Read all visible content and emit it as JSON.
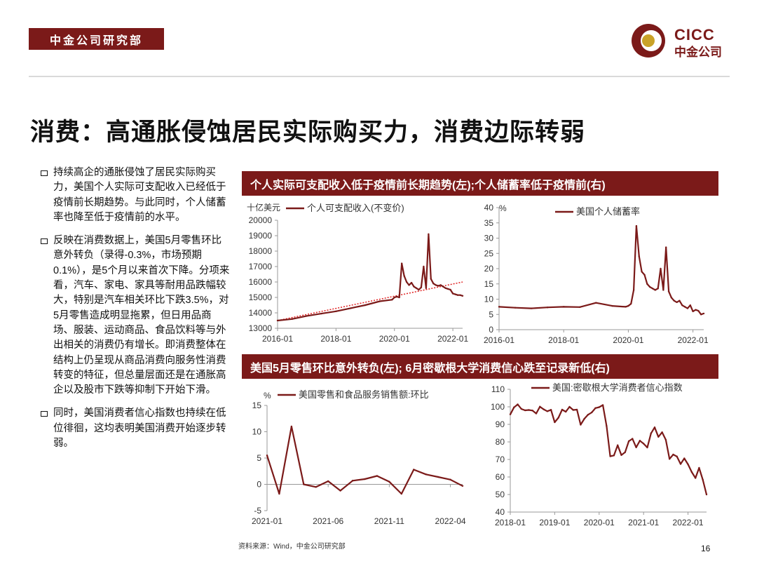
{
  "header": {
    "tag": "中金公司研究部",
    "logo_text": "CICC",
    "logo_cn": "中金公司"
  },
  "title": "消费：高通胀侵蚀居民实际购买力，消费边际转弱",
  "bullets": [
    "持续高企的通胀侵蚀了居民实际购买力，美国个人实际可支配收入已经低于疫情前长期趋势。与此同时，个人储蓄率也降至低于疫情前的水平。",
    "反映在消费数据上，美国5月零售环比意外转负（录得-0.3%，市场预期0.1%），是5个月以来首次下降。分项来看，汽车、家电、家具等耐用品跌幅较大，特别是汽车相关环比下跌3.5%，对5月零售造成明显拖累，但日用品商场、服装、运动商品、食品饮料等与外出相关的消费仍有增长。即消费整体在结构上仍呈现从商品消费向服务性消费转变的特征，但总量层面还是在通胀高企以及股市下跌等抑制下开始下滑。",
    "同时，美国消费者信心指数也持续在低位徘徊，这均表明美国消费开始逐步转弱。"
  ],
  "panel_top_title": "个人实际可支配收入低于疫情前长期趋势(左);个人储蓄率低于疫情前(右)",
  "panel_bottom_title": "美国5月零售环比意外转负(左); 6月密歇根大学消费信心跌至记录新低(右)",
  "source": "资料来源：Wind，中金公司研究部",
  "page_number": "16",
  "colors": {
    "brand": "#7b1a19",
    "series": "#7b1a19",
    "trend": "#e02020",
    "axis": "#888888"
  },
  "chart_data": [
    {
      "type": "line",
      "unit_label": "十亿美元",
      "legend": "个人可支配收入(不变价)",
      "ylim": [
        13000,
        20000
      ],
      "yticks": [
        13000,
        14000,
        15000,
        16000,
        17000,
        18000,
        19000,
        20000
      ],
      "xticks": [
        "2016-01",
        "2018-01",
        "2020-01",
        "2022-01"
      ],
      "x": [
        "2016-01",
        "2016-07",
        "2017-01",
        "2017-07",
        "2018-01",
        "2018-07",
        "2019-01",
        "2019-07",
        "2019-12",
        "2020-01",
        "2020-02",
        "2020-03",
        "2020-04",
        "2020-05",
        "2020-06",
        "2020-07",
        "2020-08",
        "2020-09",
        "2020-10",
        "2020-11",
        "2020-12",
        "2021-01",
        "2021-02",
        "2021-03",
        "2021-04",
        "2021-05",
        "2021-06",
        "2021-07",
        "2021-08",
        "2021-09",
        "2021-10",
        "2021-11",
        "2021-12",
        "2022-01",
        "2022-02",
        "2022-03",
        "2022-04",
        "2022-05"
      ],
      "values": [
        13500,
        13600,
        13800,
        13950,
        14100,
        14300,
        14500,
        14750,
        14850,
        15000,
        15050,
        15000,
        17200,
        16400,
        16000,
        15800,
        15950,
        15700,
        15600,
        15500,
        15650,
        17000,
        15600,
        19100,
        16200,
        15900,
        15800,
        15750,
        15800,
        15700,
        15600,
        15550,
        15500,
        15250,
        15200,
        15150,
        15150,
        15100
      ],
      "trend_line": {
        "label": "疫情前长期趋势",
        "start": [
          "2016-01",
          13500
        ],
        "end": [
          "2022-05",
          16000
        ]
      }
    },
    {
      "type": "line",
      "unit_label": "%",
      "legend": "美国个人储蓄率",
      "ylim": [
        0,
        40
      ],
      "yticks": [
        0,
        5,
        10,
        15,
        20,
        25,
        30,
        35,
        40
      ],
      "xticks": [
        "2016-01",
        "2018-01",
        "2020-01",
        "2022-01"
      ],
      "x": [
        "2016-01",
        "2016-07",
        "2017-01",
        "2017-07",
        "2018-01",
        "2018-07",
        "2019-01",
        "2019-07",
        "2019-12",
        "2020-01",
        "2020-02",
        "2020-03",
        "2020-04",
        "2020-05",
        "2020-06",
        "2020-07",
        "2020-08",
        "2020-09",
        "2020-10",
        "2020-11",
        "2020-12",
        "2021-01",
        "2021-02",
        "2021-03",
        "2021-04",
        "2021-05",
        "2021-06",
        "2021-07",
        "2021-08",
        "2021-09",
        "2021-10",
        "2021-11",
        "2021-12",
        "2022-01",
        "2022-02",
        "2022-03",
        "2022-04",
        "2022-05"
      ],
      "values": [
        7.5,
        7.2,
        7.0,
        7.3,
        7.5,
        7.4,
        8.8,
        7.8,
        7.5,
        7.8,
        8.5,
        13.0,
        34.0,
        24.0,
        19.0,
        18.0,
        15.0,
        14.0,
        13.5,
        13.0,
        13.5,
        20.0,
        13.0,
        27.0,
        12.5,
        10.5,
        9.5,
        9.0,
        9.5,
        8.0,
        7.5,
        7.0,
        8.0,
        6.0,
        6.5,
        6.2,
        5.0,
        5.3
      ]
    },
    {
      "type": "line",
      "unit_label": "%",
      "legend": "美国零售和食品服务销售额:环比",
      "ylim": [
        -5,
        15
      ],
      "yticks": [
        -5,
        0,
        5,
        10,
        15
      ],
      "xticks": [
        "2021-01",
        "2021-06",
        "2021-11",
        "2022-04"
      ],
      "x": [
        "2021-01",
        "2021-02",
        "2021-03",
        "2021-04",
        "2021-05",
        "2021-06",
        "2021-07",
        "2021-08",
        "2021-09",
        "2021-10",
        "2021-11",
        "2021-12",
        "2022-01",
        "2022-02",
        "2022-03",
        "2022-04",
        "2022-05"
      ],
      "values": [
        5.5,
        -1.8,
        11.0,
        0.0,
        -0.5,
        0.6,
        -1.2,
        0.7,
        1.0,
        1.6,
        0.5,
        -1.8,
        2.8,
        1.9,
        1.4,
        0.9,
        -0.3
      ]
    },
    {
      "type": "line",
      "legend": "美国:密歇根大学消费者信心指数",
      "ylim": [
        40,
        110
      ],
      "yticks": [
        40,
        50,
        60,
        70,
        80,
        90,
        100,
        110
      ],
      "xticks": [
        "2018-01",
        "2019-01",
        "2020-01",
        "2021-01",
        "2022-01"
      ],
      "x": [
        "2018-01",
        "2018-02",
        "2018-03",
        "2018-04",
        "2018-05",
        "2018-06",
        "2018-07",
        "2018-08",
        "2018-09",
        "2018-10",
        "2018-11",
        "2018-12",
        "2019-01",
        "2019-02",
        "2019-03",
        "2019-04",
        "2019-05",
        "2019-06",
        "2019-07",
        "2019-08",
        "2019-09",
        "2019-10",
        "2019-11",
        "2019-12",
        "2020-01",
        "2020-02",
        "2020-03",
        "2020-04",
        "2020-05",
        "2020-06",
        "2020-07",
        "2020-08",
        "2020-09",
        "2020-10",
        "2020-11",
        "2020-12",
        "2021-01",
        "2021-02",
        "2021-03",
        "2021-04",
        "2021-05",
        "2021-06",
        "2021-07",
        "2021-08",
        "2021-09",
        "2021-10",
        "2021-11",
        "2021-12",
        "2022-01",
        "2022-02",
        "2022-03",
        "2022-04",
        "2022-05",
        "2022-06"
      ],
      "values": [
        95.7,
        99.7,
        101.4,
        98.8,
        98.0,
        98.2,
        97.9,
        96.2,
        100.1,
        98.6,
        97.5,
        98.3,
        91.2,
        93.8,
        98.4,
        97.2,
        100.0,
        98.2,
        98.4,
        89.8,
        93.2,
        95.5,
        96.8,
        99.3,
        99.8,
        101.0,
        89.1,
        71.8,
        72.3,
        78.1,
        72.5,
        74.1,
        80.4,
        81.8,
        76.9,
        80.7,
        79.0,
        76.8,
        84.9,
        88.3,
        82.9,
        85.5,
        81.2,
        70.3,
        72.8,
        71.7,
        67.4,
        70.6,
        67.2,
        62.8,
        59.4,
        65.2,
        58.4,
        50.0
      ]
    }
  ]
}
